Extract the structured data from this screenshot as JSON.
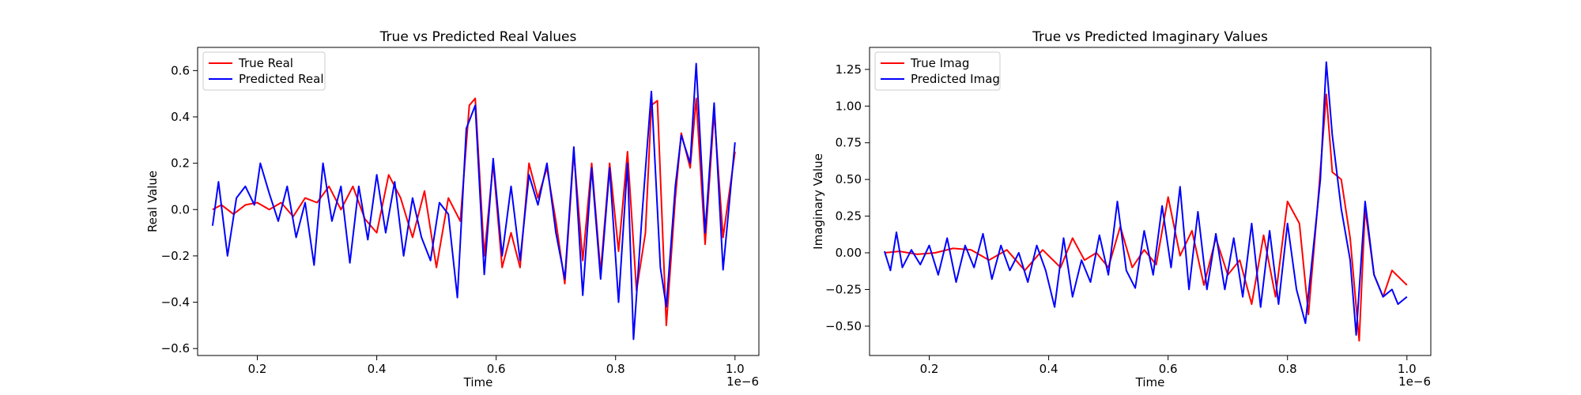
{
  "figure": {
    "background": "#ffffff"
  },
  "chart_data": [
    {
      "type": "line",
      "title": "True vs Predicted Real Values",
      "xlabel": "Time",
      "ylabel": "Real Value",
      "x_offset_text": "1e−6",
      "xlim": [
        0.1,
        1.04
      ],
      "ylim": [
        -0.63,
        0.7
      ],
      "xticks": [
        0.2,
        0.4,
        0.6,
        0.8,
        1.0
      ],
      "xtick_labels": [
        "0.2",
        "0.4",
        "0.6",
        "0.8",
        "1.0"
      ],
      "yticks": [
        -0.6,
        -0.4,
        -0.2,
        0.0,
        0.2,
        0.4,
        0.6
      ],
      "ytick_labels": [
        "−0.6",
        "−0.4",
        "−0.2",
        "0.0",
        "0.2",
        "0.4",
        "0.6"
      ],
      "grid": false,
      "legend_position": "top-left",
      "series": [
        {
          "name": "True Real",
          "color": "#ff0000",
          "points": [
            [
              0.125,
              0.0
            ],
            [
              0.14,
              0.02
            ],
            [
              0.16,
              -0.02
            ],
            [
              0.18,
              0.02
            ],
            [
              0.2,
              0.03
            ],
            [
              0.22,
              0.0
            ],
            [
              0.24,
              0.03
            ],
            [
              0.26,
              -0.03
            ],
            [
              0.28,
              0.05
            ],
            [
              0.3,
              0.03
            ],
            [
              0.32,
              0.1
            ],
            [
              0.34,
              0.0
            ],
            [
              0.36,
              0.1
            ],
            [
              0.38,
              -0.04
            ],
            [
              0.4,
              -0.1
            ],
            [
              0.42,
              0.15
            ],
            [
              0.44,
              0.05
            ],
            [
              0.46,
              -0.12
            ],
            [
              0.48,
              0.08
            ],
            [
              0.5,
              -0.25
            ],
            [
              0.52,
              0.05
            ],
            [
              0.54,
              -0.05
            ],
            [
              0.555,
              0.45
            ],
            [
              0.565,
              0.48
            ],
            [
              0.58,
              -0.2
            ],
            [
              0.595,
              0.2
            ],
            [
              0.61,
              -0.25
            ],
            [
              0.625,
              -0.1
            ],
            [
              0.64,
              -0.25
            ],
            [
              0.655,
              0.2
            ],
            [
              0.67,
              0.05
            ],
            [
              0.685,
              0.18
            ],
            [
              0.7,
              -0.05
            ],
            [
              0.715,
              -0.32
            ],
            [
              0.73,
              0.25
            ],
            [
              0.745,
              -0.22
            ],
            [
              0.76,
              0.2
            ],
            [
              0.775,
              -0.27
            ],
            [
              0.79,
              0.2
            ],
            [
              0.805,
              -0.18
            ],
            [
              0.82,
              0.25
            ],
            [
              0.835,
              -0.35
            ],
            [
              0.85,
              -0.1
            ],
            [
              0.86,
              0.45
            ],
            [
              0.87,
              0.47
            ],
            [
              0.885,
              -0.5
            ],
            [
              0.9,
              0.05
            ],
            [
              0.91,
              0.33
            ],
            [
              0.925,
              0.18
            ],
            [
              0.935,
              0.48
            ],
            [
              0.95,
              -0.15
            ],
            [
              0.965,
              0.42
            ],
            [
              0.98,
              -0.12
            ],
            [
              1.0,
              0.25
            ]
          ]
        },
        {
          "name": "Predicted Real",
          "color": "#0000ff",
          "points": [
            [
              0.125,
              -0.07
            ],
            [
              0.135,
              0.12
            ],
            [
              0.15,
              -0.2
            ],
            [
              0.165,
              0.05
            ],
            [
              0.18,
              0.1
            ],
            [
              0.195,
              0.02
            ],
            [
              0.205,
              0.2
            ],
            [
              0.22,
              0.07
            ],
            [
              0.235,
              -0.05
            ],
            [
              0.25,
              0.1
            ],
            [
              0.265,
              -0.12
            ],
            [
              0.28,
              0.03
            ],
            [
              0.295,
              -0.24
            ],
            [
              0.31,
              0.2
            ],
            [
              0.325,
              -0.05
            ],
            [
              0.34,
              0.1
            ],
            [
              0.355,
              -0.23
            ],
            [
              0.37,
              0.1
            ],
            [
              0.385,
              -0.13
            ],
            [
              0.4,
              0.15
            ],
            [
              0.415,
              -0.1
            ],
            [
              0.43,
              0.12
            ],
            [
              0.445,
              -0.2
            ],
            [
              0.46,
              0.05
            ],
            [
              0.475,
              -0.12
            ],
            [
              0.49,
              -0.22
            ],
            [
              0.505,
              0.03
            ],
            [
              0.52,
              -0.02
            ],
            [
              0.535,
              -0.38
            ],
            [
              0.55,
              0.35
            ],
            [
              0.565,
              0.45
            ],
            [
              0.58,
              -0.28
            ],
            [
              0.595,
              0.22
            ],
            [
              0.61,
              -0.2
            ],
            [
              0.625,
              0.1
            ],
            [
              0.64,
              -0.22
            ],
            [
              0.655,
              0.15
            ],
            [
              0.67,
              0.02
            ],
            [
              0.685,
              0.2
            ],
            [
              0.7,
              -0.1
            ],
            [
              0.715,
              -0.3
            ],
            [
              0.73,
              0.27
            ],
            [
              0.745,
              -0.37
            ],
            [
              0.76,
              0.18
            ],
            [
              0.775,
              -0.3
            ],
            [
              0.79,
              0.18
            ],
            [
              0.805,
              -0.4
            ],
            [
              0.82,
              0.2
            ],
            [
              0.83,
              -0.56
            ],
            [
              0.845,
              0.0
            ],
            [
              0.86,
              0.51
            ],
            [
              0.875,
              -0.25
            ],
            [
              0.885,
              -0.42
            ],
            [
              0.9,
              0.1
            ],
            [
              0.91,
              0.32
            ],
            [
              0.925,
              0.2
            ],
            [
              0.935,
              0.63
            ],
            [
              0.95,
              -0.1
            ],
            [
              0.965,
              0.46
            ],
            [
              0.98,
              -0.26
            ],
            [
              1.0,
              0.29
            ]
          ]
        }
      ]
    },
    {
      "type": "line",
      "title": "True vs Predicted Imaginary Values",
      "xlabel": "Time",
      "ylabel": "Imaginary Value",
      "x_offset_text": "1e−6",
      "xlim": [
        0.1,
        1.04
      ],
      "ylim": [
        -0.7,
        1.4
      ],
      "xticks": [
        0.2,
        0.4,
        0.6,
        0.8,
        1.0
      ],
      "xtick_labels": [
        "0.2",
        "0.4",
        "0.6",
        "0.8",
        "1.0"
      ],
      "yticks": [
        -0.5,
        -0.25,
        0.0,
        0.25,
        0.5,
        0.75,
        1.0,
        1.25
      ],
      "ytick_labels": [
        "−0.50",
        "−0.25",
        "0.00",
        "0.25",
        "0.50",
        "0.75",
        "1.00",
        "1.25"
      ],
      "grid": false,
      "legend_position": "top-left",
      "series": [
        {
          "name": "True Imag",
          "color": "#ff0000",
          "points": [
            [
              0.125,
              0.0
            ],
            [
              0.15,
              0.01
            ],
            [
              0.18,
              -0.01
            ],
            [
              0.21,
              0.0
            ],
            [
              0.24,
              0.03
            ],
            [
              0.27,
              0.02
            ],
            [
              0.3,
              -0.05
            ],
            [
              0.33,
              0.02
            ],
            [
              0.36,
              -0.12
            ],
            [
              0.39,
              0.02
            ],
            [
              0.42,
              -0.1
            ],
            [
              0.44,
              0.1
            ],
            [
              0.46,
              -0.05
            ],
            [
              0.48,
              0.0
            ],
            [
              0.5,
              -0.1
            ],
            [
              0.52,
              0.18
            ],
            [
              0.54,
              -0.1
            ],
            [
              0.56,
              0.02
            ],
            [
              0.58,
              -0.08
            ],
            [
              0.6,
              0.38
            ],
            [
              0.62,
              -0.02
            ],
            [
              0.64,
              0.15
            ],
            [
              0.66,
              -0.22
            ],
            [
              0.68,
              0.1
            ],
            [
              0.7,
              -0.15
            ],
            [
              0.72,
              -0.05
            ],
            [
              0.74,
              -0.35
            ],
            [
              0.76,
              0.12
            ],
            [
              0.78,
              -0.3
            ],
            [
              0.8,
              0.35
            ],
            [
              0.82,
              0.2
            ],
            [
              0.835,
              -0.42
            ],
            [
              0.85,
              0.3
            ],
            [
              0.865,
              1.08
            ],
            [
              0.875,
              0.55
            ],
            [
              0.89,
              0.5
            ],
            [
              0.905,
              0.1
            ],
            [
              0.92,
              -0.6
            ],
            [
              0.93,
              0.3
            ],
            [
              0.945,
              -0.15
            ],
            [
              0.96,
              -0.3
            ],
            [
              0.975,
              -0.12
            ],
            [
              1.0,
              -0.22
            ]
          ]
        },
        {
          "name": "Predicted Imag",
          "color": "#0000ff",
          "points": [
            [
              0.125,
              0.01
            ],
            [
              0.135,
              -0.12
            ],
            [
              0.145,
              0.14
            ],
            [
              0.155,
              -0.1
            ],
            [
              0.17,
              0.02
            ],
            [
              0.185,
              -0.08
            ],
            [
              0.2,
              0.05
            ],
            [
              0.215,
              -0.15
            ],
            [
              0.23,
              0.1
            ],
            [
              0.245,
              -0.2
            ],
            [
              0.26,
              0.05
            ],
            [
              0.275,
              -0.1
            ],
            [
              0.29,
              0.13
            ],
            [
              0.305,
              -0.18
            ],
            [
              0.32,
              0.05
            ],
            [
              0.335,
              -0.12
            ],
            [
              0.35,
              0.0
            ],
            [
              0.365,
              -0.2
            ],
            [
              0.38,
              0.05
            ],
            [
              0.395,
              -0.12
            ],
            [
              0.41,
              -0.37
            ],
            [
              0.425,
              0.1
            ],
            [
              0.44,
              -0.3
            ],
            [
              0.455,
              -0.05
            ],
            [
              0.47,
              -0.2
            ],
            [
              0.485,
              0.12
            ],
            [
              0.5,
              -0.15
            ],
            [
              0.515,
              0.35
            ],
            [
              0.53,
              -0.12
            ],
            [
              0.545,
              -0.24
            ],
            [
              0.56,
              0.15
            ],
            [
              0.575,
              -0.15
            ],
            [
              0.59,
              0.32
            ],
            [
              0.605,
              -0.1
            ],
            [
              0.62,
              0.45
            ],
            [
              0.635,
              -0.25
            ],
            [
              0.65,
              0.28
            ],
            [
              0.665,
              -0.25
            ],
            [
              0.68,
              0.13
            ],
            [
              0.695,
              -0.25
            ],
            [
              0.71,
              0.1
            ],
            [
              0.725,
              -0.3
            ],
            [
              0.74,
              0.2
            ],
            [
              0.755,
              -0.37
            ],
            [
              0.77,
              0.15
            ],
            [
              0.785,
              -0.35
            ],
            [
              0.8,
              0.2
            ],
            [
              0.815,
              -0.25
            ],
            [
              0.83,
              -0.48
            ],
            [
              0.845,
              0.1
            ],
            [
              0.855,
              0.5
            ],
            [
              0.865,
              1.3
            ],
            [
              0.875,
              0.8
            ],
            [
              0.89,
              0.3
            ],
            [
              0.905,
              -0.05
            ],
            [
              0.915,
              -0.56
            ],
            [
              0.93,
              0.35
            ],
            [
              0.945,
              -0.15
            ],
            [
              0.96,
              -0.3
            ],
            [
              0.975,
              -0.25
            ],
            [
              0.985,
              -0.35
            ],
            [
              1.0,
              -0.3
            ]
          ]
        }
      ]
    }
  ]
}
